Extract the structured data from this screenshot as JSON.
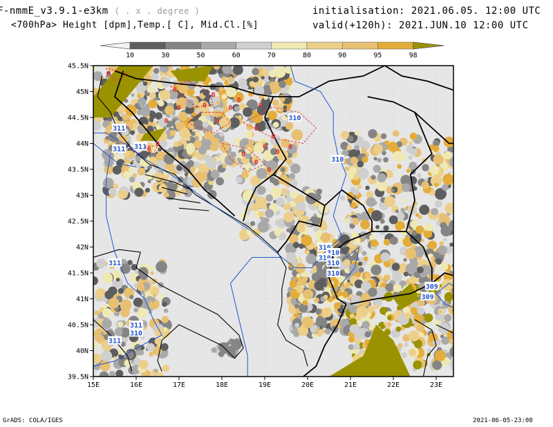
{
  "header": {
    "model": "F-nmmE_v3.9.1-e3km",
    "grid_unit": "( . x . degree )",
    "initialisation": "initialisation: 2021.06.05.  12:00 UTC",
    "field": "<700hPa> Height [dpm],Temp.[ C], Mid.Cl.[%]",
    "valid": "valid(+120h): 2021.JUN.10 12:00 UTC"
  },
  "colorbar": {
    "levels": [
      "10",
      "30",
      "50",
      "60",
      "70",
      "80",
      "90",
      "95",
      "98"
    ],
    "colors": [
      "#f2f2f2",
      "#5e5e5e",
      "#858585",
      "#a9a9a9",
      "#cfcfcf",
      "#eee9b4",
      "#eccf8a",
      "#e8c072",
      "#e4ac3a",
      "#9a9200"
    ]
  },
  "axes": {
    "lat_labels": [
      "45.5N",
      "45N",
      "44.5N",
      "44N",
      "43.5N",
      "43N",
      "42.5N",
      "42N",
      "41.5N",
      "41N",
      "40.5N",
      "40N",
      "39.5N"
    ],
    "lon_labels": [
      "15E",
      "16E",
      "17E",
      "18E",
      "19E",
      "20E",
      "21E",
      "22E",
      "23E"
    ]
  },
  "contours": {
    "height_labels": [
      "311",
      "311",
      "311",
      "311",
      "311",
      "311",
      "310",
      "310",
      "310",
      "310",
      "310",
      "310",
      "310",
      "310",
      "309",
      "309"
    ],
    "temp_labels": [
      "0",
      "0",
      "0",
      "0",
      "0",
      "0",
      "0",
      "0",
      "0",
      "0",
      "0",
      "0",
      "0",
      "0",
      "0",
      "0",
      "0",
      "0",
      "0",
      "0"
    ]
  },
  "colors": {
    "land_bg": "#e6e6e6",
    "height_contour": "#2255cc",
    "temp_contour": "#e03030",
    "border": "#000000"
  },
  "footer": {
    "left": "GrADS: COLA/IGES",
    "right": "2021-06-05-23:08"
  }
}
